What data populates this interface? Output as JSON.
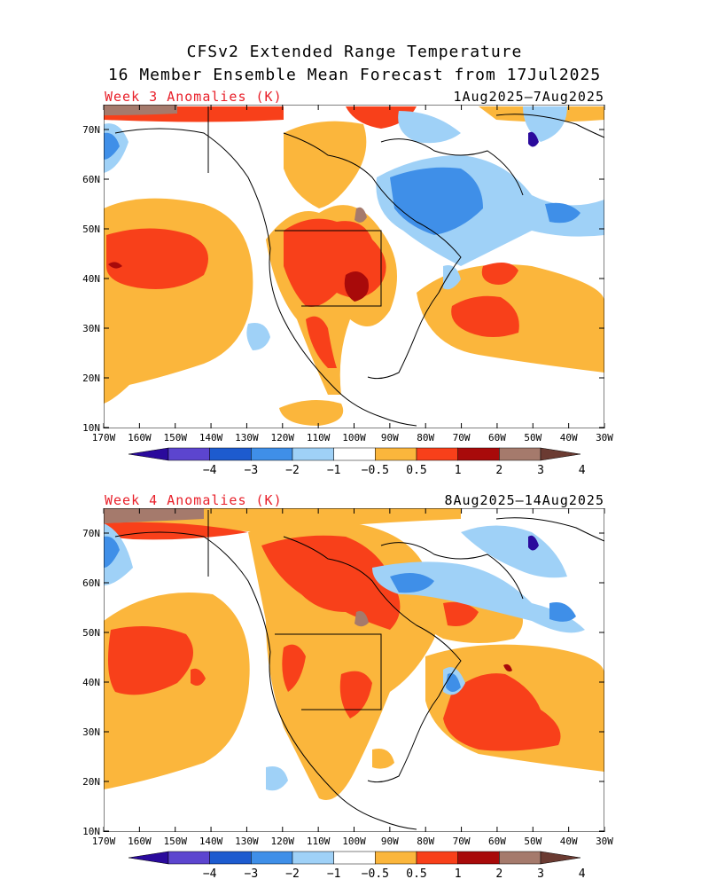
{
  "title_line1": "CFSv2 Extended Range Temperature",
  "title_line2": "16 Member Ensemble Mean Forecast from 17Jul2025",
  "lat_labels": [
    "70N",
    "60N",
    "50N",
    "40N",
    "30N",
    "20N",
    "10N"
  ],
  "lon_labels": [
    "170W",
    "160W",
    "150W",
    "140W",
    "130W",
    "120W",
    "110W",
    "100W",
    "90W",
    "80W",
    "70W",
    "60W",
    "50W",
    "40W",
    "30W"
  ],
  "colorbar": {
    "ticks": [
      "−4",
      "−3",
      "−2",
      "−1",
      "−0.5",
      "0.5",
      "1",
      "2",
      "3",
      "4"
    ],
    "colors": [
      "#2a0a9c",
      "#5c45cf",
      "#1d5bcf",
      "#3f8fe8",
      "#9fd1f7",
      "#ffffff",
      "#fbb63c",
      "#f8401a",
      "#a80a0a",
      "#a57a6c",
      "#6b3b32"
    ]
  },
  "panels": [
    {
      "label": "Week 3 Anomalies (K)",
      "dates": "1Aug2025–7Aug2025"
    },
    {
      "label": "Week 4 Anomalies (K)",
      "dates": "8Aug2025–14Aug2025"
    }
  ]
}
